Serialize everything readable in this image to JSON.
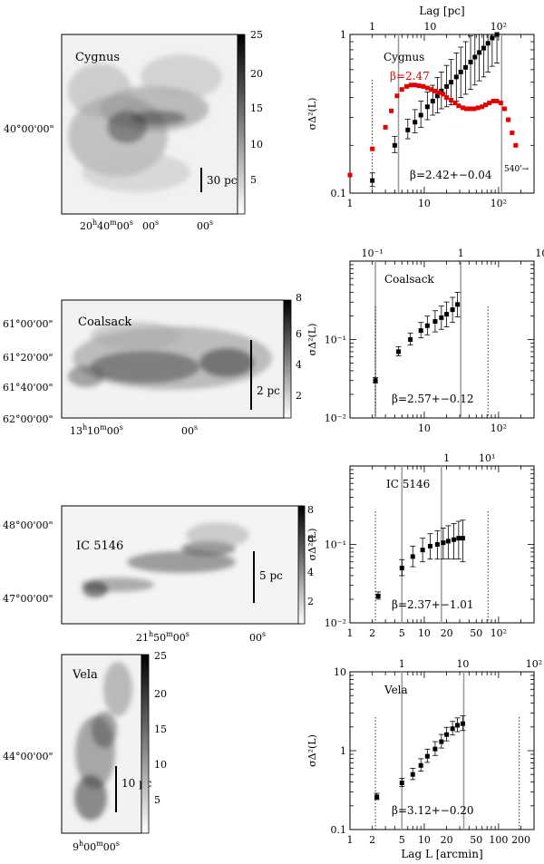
{
  "chart_data": [
    {
      "type": "scatter",
      "region": "Cygnus",
      "panel_label": "Cygnus",
      "x_axis_top_label": "Lag [pc]",
      "x_axis_bottom_label": "",
      "y_axis_label": "σΔ²(L)",
      "xlim": [
        1,
        300
      ],
      "ylim": [
        0.1,
        1
      ],
      "x_scale": "log",
      "y_scale": "log",
      "bottom_ticks": [
        "1",
        "10",
        "10²"
      ],
      "top_ticks": [
        "1",
        "10",
        "10²"
      ],
      "left_ticks": [
        "0.1",
        "1"
      ],
      "series": [
        {
          "color": "#000000",
          "marker": "square",
          "x": [
            2,
            4,
            6,
            7.5,
            9,
            11,
            13,
            15,
            17,
            20,
            23,
            27,
            31,
            36,
            42,
            48,
            55,
            63,
            72,
            82,
            95
          ],
          "y": [
            0.12,
            0.2,
            0.25,
            0.28,
            0.31,
            0.35,
            0.38,
            0.41,
            0.44,
            0.47,
            0.5,
            0.54,
            0.58,
            0.62,
            0.67,
            0.72,
            0.77,
            0.82,
            0.88,
            0.95,
            1.0
          ],
          "err_lo": [
            0.01,
            0.02,
            0.03,
            0.04,
            0.05,
            0.06,
            0.07,
            0.09,
            0.1,
            0.12,
            0.14,
            0.16,
            0.18,
            0.2,
            0.22,
            0.24,
            0.26,
            0.28,
            0.3,
            0.32,
            0.34
          ]
        },
        {
          "name": "β=2.47",
          "color": "#e00000",
          "marker": "square",
          "x": [
            1,
            2,
            3,
            3.6,
            4.3,
            5,
            5.8,
            6.6,
            7.5,
            8.5,
            9.7,
            11,
            12.5,
            14,
            16,
            18,
            20,
            23,
            26,
            29,
            33,
            37,
            42,
            47,
            53,
            60,
            67,
            75,
            85,
            95,
            107,
            120,
            135,
            152,
            170
          ],
          "y": [
            0.13,
            0.19,
            0.26,
            0.33,
            0.41,
            0.45,
            0.47,
            0.48,
            0.48,
            0.475,
            0.47,
            0.46,
            0.45,
            0.44,
            0.43,
            0.42,
            0.4,
            0.385,
            0.37,
            0.355,
            0.345,
            0.34,
            0.34,
            0.34,
            0.345,
            0.35,
            0.36,
            0.37,
            0.38,
            0.38,
            0.37,
            0.34,
            0.29,
            0.24,
            0.2
          ]
        }
      ],
      "annotations": [
        "β=2.47",
        "β=2.42+−0.04",
        "540'→"
      ]
    },
    {
      "type": "scatter",
      "region": "Coalsack",
      "panel_label": "Coalsack",
      "x_axis_top_label": "",
      "x_axis_bottom_label": "",
      "y_axis_label": "σΔ²(L)",
      "xlim": [
        1,
        300
      ],
      "ylim": [
        0.01,
        1
      ],
      "x_scale": "log",
      "y_scale": "log",
      "bottom_ticks": [
        "10",
        "10²"
      ],
      "top_ticks": [
        "10⁻¹",
        "1",
        "10"
      ],
      "left_ticks": [
        "10⁻²",
        "10⁻¹"
      ],
      "series": [
        {
          "color": "#000000",
          "marker": "square",
          "x": [
            2.2,
            4.5,
            6.5,
            9,
            11,
            14,
            17,
            20,
            24,
            28
          ],
          "y": [
            0.03,
            0.07,
            0.1,
            0.13,
            0.15,
            0.17,
            0.19,
            0.21,
            0.24,
            0.28
          ],
          "err_lo": [
            0.002,
            0.008,
            0.015,
            0.025,
            0.035,
            0.045,
            0.055,
            0.065,
            0.075,
            0.085
          ]
        }
      ],
      "annotations": [
        "β=2.57+−0.12"
      ]
    },
    {
      "type": "scatter",
      "region": "IC 5146",
      "panel_label": "IC 5146",
      "x_axis_top_label": "",
      "x_axis_bottom_label": "",
      "y_axis_label": "σΔ²(L)",
      "xlim": [
        1,
        300
      ],
      "ylim": [
        0.01,
        1
      ],
      "x_scale": "log",
      "y_scale": "log",
      "bottom_ticks": [
        "1",
        "2",
        "5",
        "10",
        "20",
        "50",
        "10²"
      ],
      "top_ticks": [
        "1",
        "10¹"
      ],
      "left_ticks": [
        "10⁻²",
        "10⁻¹"
      ],
      "series": [
        {
          "color": "#000000",
          "marker": "square",
          "x": [
            2.4,
            5,
            7,
            9.5,
            12,
            15,
            18,
            21,
            25,
            29,
            33
          ],
          "y": [
            0.022,
            0.05,
            0.07,
            0.085,
            0.095,
            0.1,
            0.105,
            0.11,
            0.115,
            0.12,
            0.12
          ],
          "err_lo": [
            0.002,
            0.01,
            0.018,
            0.025,
            0.03,
            0.035,
            0.04,
            0.045,
            0.05,
            0.055,
            0.06
          ]
        }
      ],
      "annotations": [
        "β=2.37+−1.01"
      ]
    },
    {
      "type": "scatter",
      "region": "Vela",
      "panel_label": "Vela",
      "x_axis_top_label": "",
      "x_axis_bottom_label": "Lag L [arcmin]",
      "y_axis_label": "σΔ²(L)",
      "xlim": [
        1,
        300
      ],
      "ylim": [
        0.1,
        10
      ],
      "x_scale": "log",
      "y_scale": "log",
      "bottom_ticks": [
        "1",
        "2",
        "5",
        "10",
        "20",
        "50",
        "100",
        "200"
      ],
      "top_ticks": [
        "1",
        "10",
        "10²"
      ],
      "left_ticks": [
        "0.1",
        "1",
        "10"
      ],
      "series": [
        {
          "color": "#000000",
          "marker": "square",
          "x": [
            2.3,
            5,
            7,
            9,
            11,
            14,
            17,
            20,
            24,
            28,
            33
          ],
          "y": [
            0.26,
            0.39,
            0.5,
            0.65,
            0.85,
            1.05,
            1.3,
            1.6,
            1.9,
            2.1,
            2.2
          ],
          "err_lo": [
            0.02,
            0.04,
            0.07,
            0.1,
            0.14,
            0.18,
            0.22,
            0.27,
            0.32,
            0.36,
            0.4
          ]
        }
      ],
      "annotations": [
        "β=3.12+−0.20"
      ]
    }
  ],
  "maps": [
    {
      "region": "Cygnus",
      "label": "Cygnus",
      "dec_labels": [
        "40°00'00\""
      ],
      "ra_labels": [
        "20h40m00s",
        "00s",
        "00s"
      ],
      "ra_labels_split": [
        [
          "20",
          "h",
          "40",
          "m",
          "00",
          "s"
        ],
        [
          "00",
          "s"
        ],
        [
          "00",
          "s"
        ]
      ],
      "colorbar_ticks": [
        "25",
        "20",
        "15",
        "10",
        "5"
      ],
      "scale_bar": "30 pc"
    },
    {
      "region": "Coalsack",
      "label": "Coalsack",
      "dec_labels": [
        "61°00'00\"",
        "61°20'00\"",
        "61°40'00\"",
        "62°00'00\""
      ],
      "ra_labels_split": [
        [
          "13",
          "h",
          "10",
          "m",
          "00",
          "s"
        ],
        [
          "00",
          "s"
        ]
      ],
      "colorbar_ticks": [
        "8",
        "6",
        "4",
        "2"
      ],
      "scale_bar": "2 pc"
    },
    {
      "region": "IC 5146",
      "label": "IC 5146",
      "dec_labels": [
        "48°00'00\"",
        "47°00'00\""
      ],
      "ra_labels_split": [
        [
          "21",
          "h",
          "50",
          "m",
          "00",
          "s"
        ],
        [
          "00",
          "s"
        ]
      ],
      "colorbar_ticks": [
        "8",
        "6",
        "4",
        "2"
      ],
      "scale_bar": "5 pc"
    },
    {
      "region": "Vela",
      "label": "Vela",
      "dec_labels": [
        "44°00'00\""
      ],
      "ra_labels_split": [
        [
          "9",
          "h",
          "00",
          "m",
          "00",
          "s"
        ]
      ],
      "colorbar_ticks": [
        "25",
        "20",
        "15",
        "10",
        "5"
      ],
      "scale_bar": "10 pc"
    }
  ]
}
